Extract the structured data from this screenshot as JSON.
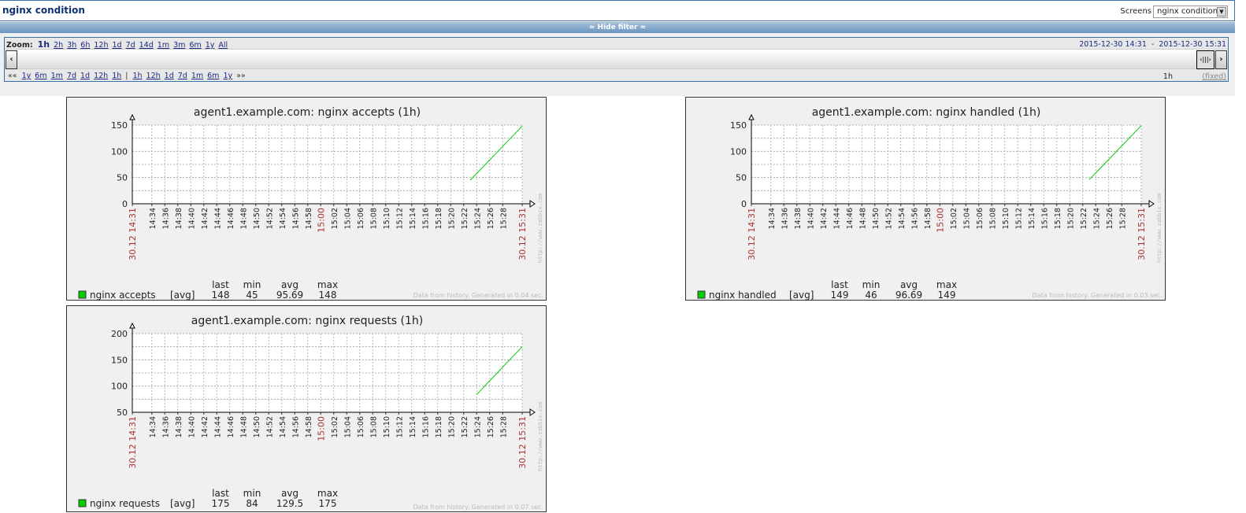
{
  "header": {
    "title": "nginx condition",
    "screens_label": "Screens",
    "screens_selected": "nginx condition"
  },
  "filter_toggle": "≈ Hide filter ≈",
  "filter": {
    "zoom_label": "Zoom:",
    "zoom_options": [
      "1h",
      "2h",
      "3h",
      "6h",
      "12h",
      "1d",
      "7d",
      "14d",
      "1m",
      "3m",
      "6m",
      "1y",
      "All"
    ],
    "zoom_current": "1h",
    "from": "2015-12-30 14:31",
    "sep": "-",
    "to": "2015-12-30 15:31",
    "back_options": [
      "««",
      "1y",
      "6m",
      "1m",
      "7d",
      "1d",
      "12h",
      "1h"
    ],
    "divider": "|",
    "fwd_options": [
      "1h",
      "12h",
      "1d",
      "7d",
      "1m",
      "6m",
      "1y",
      "»»"
    ],
    "period": "1h",
    "fixed": "(fixed)"
  },
  "chart_data": [
    {
      "type": "line",
      "title": "agent1.example.com: nginx accepts (1h)",
      "ylim": [
        0,
        150
      ],
      "yticks": [
        0,
        50,
        100,
        150
      ],
      "ygrid_step": 25,
      "xlim": [
        "14:31",
        "15:31"
      ],
      "x_start_label": "30.12 14:31",
      "x_end_label": "30.12 15:31",
      "xticks": [
        "14:34",
        "14:36",
        "14:38",
        "14:40",
        "14:42",
        "14:44",
        "14:46",
        "14:48",
        "14:50",
        "14:52",
        "14:54",
        "14:56",
        "14:58",
        "15:00",
        "15:02",
        "15:04",
        "15:06",
        "15:08",
        "15:10",
        "15:12",
        "15:14",
        "15:16",
        "15:18",
        "15:20",
        "15:22",
        "15:24",
        "15:26",
        "15:28"
      ],
      "series": [
        {
          "name": "nginx accepts",
          "color": "#00cc00",
          "points": [
            [
              "15:23",
              45
            ],
            [
              "15:31",
              148
            ]
          ]
        }
      ],
      "legend": {
        "headers": [
          "last",
          "min",
          "avg",
          "max"
        ],
        "name": "nginx accepts",
        "func": "[avg]",
        "values": [
          "148",
          "45",
          "95.69",
          "148"
        ]
      },
      "watermark": "http://www.zabbix.com",
      "footer": "Data from history. Generated in 0.04 sec."
    },
    {
      "type": "line",
      "title": "agent1.example.com: nginx handled (1h)",
      "ylim": [
        0,
        150
      ],
      "yticks": [
        0,
        50,
        100,
        150
      ],
      "ygrid_step": 25,
      "xlim": [
        "14:31",
        "15:31"
      ],
      "x_start_label": "30.12 14:31",
      "x_end_label": "30.12 15:31",
      "xticks": [
        "14:34",
        "14:36",
        "14:38",
        "14:40",
        "14:42",
        "14:44",
        "14:46",
        "14:48",
        "14:50",
        "14:52",
        "14:54",
        "14:56",
        "14:58",
        "15:00",
        "15:02",
        "15:04",
        "15:06",
        "15:08",
        "15:10",
        "15:12",
        "15:14",
        "15:16",
        "15:18",
        "15:20",
        "15:22",
        "15:24",
        "15:26",
        "15:28"
      ],
      "series": [
        {
          "name": "nginx handled",
          "color": "#00cc00",
          "points": [
            [
              "15:23",
              46
            ],
            [
              "15:31",
              149
            ]
          ]
        }
      ],
      "legend": {
        "headers": [
          "last",
          "min",
          "avg",
          "max"
        ],
        "name": "nginx handled",
        "func": "[avg]",
        "values": [
          "149",
          "46",
          "96.69",
          "149"
        ]
      },
      "watermark": "http://www.zabbix.com",
      "footer": "Data from history. Generated in 0.03 sec."
    },
    {
      "type": "line",
      "title": "agent1.example.com: nginx requests (1h)",
      "ylim": [
        50,
        200
      ],
      "yticks": [
        50,
        100,
        150,
        200
      ],
      "ygrid_step": 25,
      "xlim": [
        "14:31",
        "15:31"
      ],
      "x_start_label": "30.12 14:31",
      "x_end_label": "30.12 15:31",
      "xticks": [
        "14:34",
        "14:36",
        "14:38",
        "14:40",
        "14:42",
        "14:44",
        "14:46",
        "14:48",
        "14:50",
        "14:52",
        "14:54",
        "14:56",
        "14:58",
        "15:00",
        "15:02",
        "15:04",
        "15:06",
        "15:08",
        "15:10",
        "15:12",
        "15:14",
        "15:16",
        "15:18",
        "15:20",
        "15:22",
        "15:24",
        "15:26",
        "15:28"
      ],
      "series": [
        {
          "name": "nginx requests",
          "color": "#00cc00",
          "points": [
            [
              "15:24",
              84
            ],
            [
              "15:31",
              175
            ]
          ]
        }
      ],
      "legend": {
        "headers": [
          "last",
          "min",
          "avg",
          "max"
        ],
        "name": "nginx requests",
        "func": "[avg]",
        "values": [
          "175",
          "84",
          "129.5",
          "175"
        ]
      },
      "watermark": "http://www.zabbix.com",
      "footer": "Data from history. Generated in 0.07 sec."
    }
  ]
}
